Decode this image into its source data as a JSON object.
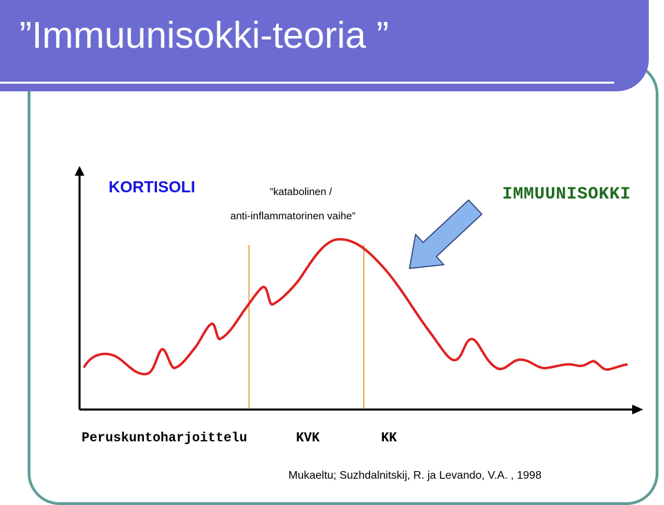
{
  "slide": {
    "title": "”Immuunisokki-teoria ”"
  },
  "diagram": {
    "y_axis_label": "KORTISOLI",
    "phase_label_line1": "”katabolinen /",
    "phase_label_line2": "anti-inflammatorinen vaihe”",
    "arrow_label": "IMMUUNISOKKI",
    "x_labels": [
      "Peruskuntoharjoittelu",
      "KVK",
      "KK"
    ],
    "source": "Mukaeltu; Suzhdalnitskij, R. ja Levando, V.A. , 1998"
  },
  "colors": {
    "title_bar": "#6b6bd1",
    "frame": "#5e9e96",
    "curve": "#e02020",
    "phase_lines": "#f0b060",
    "arrow_fill": "#8ab4ee",
    "arrow_stroke": "#2a3a7a",
    "cortisol_label": "#1313e0",
    "immuno_label": "#1f6b1f"
  }
}
